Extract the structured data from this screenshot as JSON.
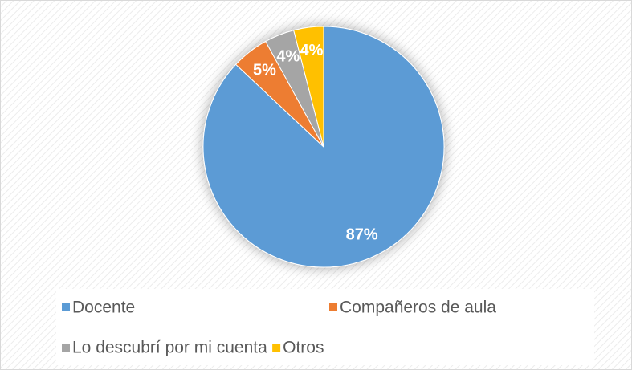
{
  "chart_data": {
    "type": "pie",
    "categories": [
      "Docente",
      "Compañeros de aula",
      "Lo descubrí por mi cuenta",
      "Otros"
    ],
    "values": [
      87,
      5,
      4,
      4
    ],
    "value_labels": [
      "87%",
      "5%",
      "4%",
      "4%"
    ],
    "colors": [
      "#5b9bd5",
      "#ed7d31",
      "#a5a5a5",
      "#ffc000"
    ],
    "legend": "bottom"
  }
}
